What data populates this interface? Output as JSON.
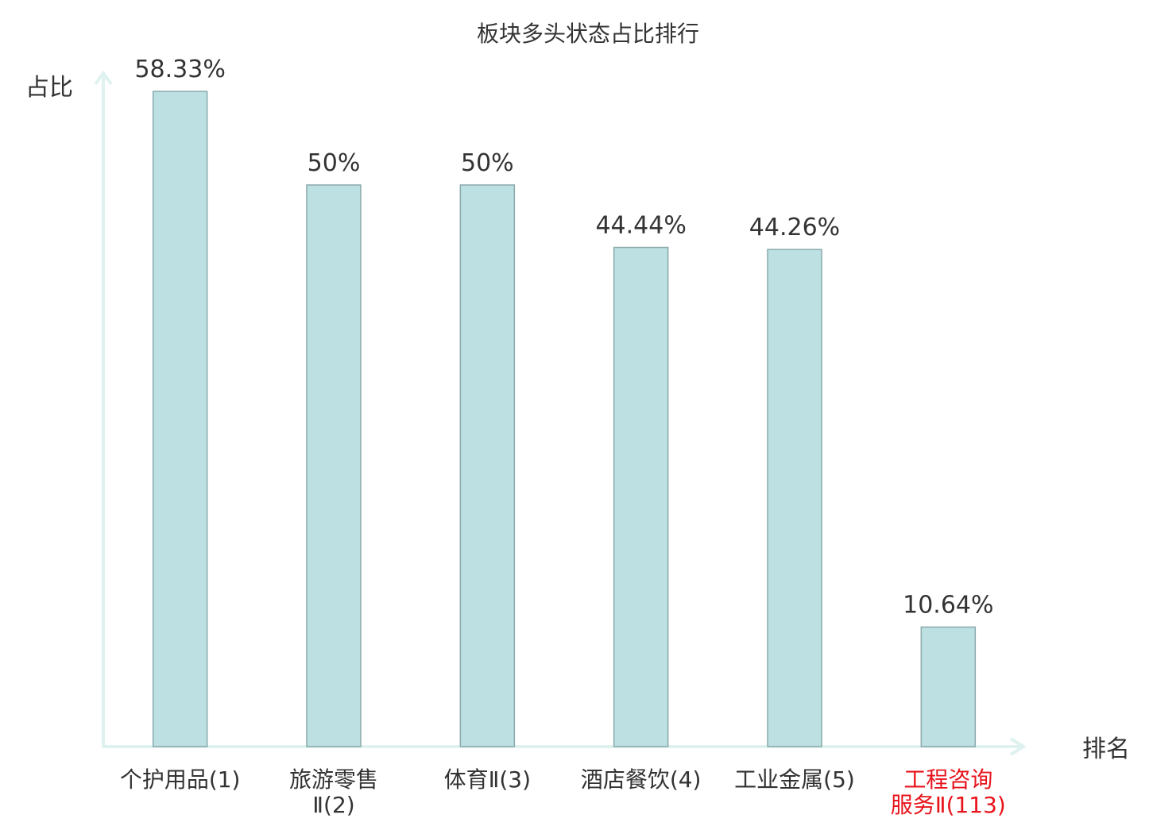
{
  "chart_data": {
    "type": "bar",
    "title": "板块多头状态占比排行",
    "y_label": "占比",
    "x_label": "排名",
    "categories": [
      "个护用品(1)",
      "旅游零售\nⅡ(2)",
      "体育Ⅱ(3)",
      "酒店餐饮(4)",
      "工业金属(5)",
      "工程咨询\n服务Ⅱ(113)"
    ],
    "label_colors": [
      "#333333",
      "#333333",
      "#333333",
      "#333333",
      "#333333",
      "#e8141c"
    ],
    "values": [
      58.33,
      50,
      50,
      44.44,
      44.26,
      10.64
    ],
    "value_labels": [
      "58.33%",
      "50%",
      "50%",
      "44.44%",
      "44.26%",
      "10.64%"
    ],
    "color": "#bde0e3",
    "ylim": [
      0,
      60
    ]
  }
}
